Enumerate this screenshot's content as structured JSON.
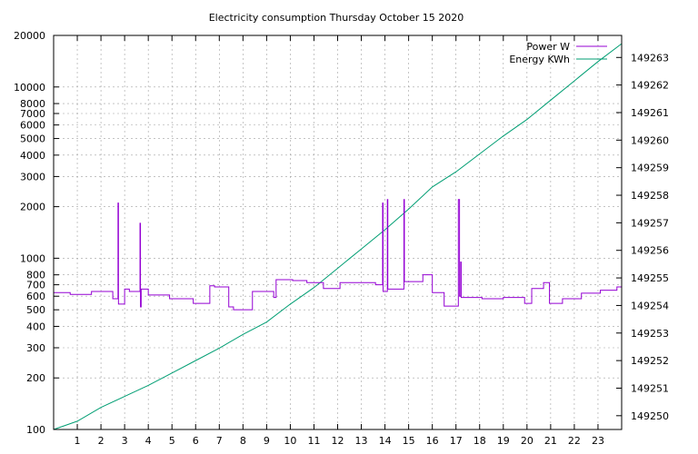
{
  "chart_data": {
    "type": "line",
    "title": "Electricity consumption Thursday October 15 2020",
    "x_range": [
      0,
      24
    ],
    "x_ticks": [
      1,
      2,
      3,
      4,
      5,
      6,
      7,
      8,
      9,
      10,
      11,
      12,
      13,
      14,
      15,
      16,
      17,
      18,
      19,
      20,
      21,
      22,
      23
    ],
    "x_tick_labels": [
      "1",
      "2",
      "3",
      "4",
      "5",
      "6",
      "7",
      "8",
      "9",
      "10",
      "11",
      "12",
      "13",
      "14",
      "15",
      "16",
      "17",
      "18",
      "19",
      "20",
      "21",
      "22",
      "23"
    ],
    "y_left": {
      "scale": "log",
      "range": [
        100,
        20000
      ],
      "ticks": [
        100,
        200,
        300,
        400,
        500,
        600,
        700,
        800,
        1000,
        2000,
        3000,
        4000,
        5000,
        6000,
        7000,
        8000,
        10000,
        20000
      ],
      "tick_labels": [
        "100",
        "200",
        "300",
        "400",
        "500",
        "600",
        "700",
        "800",
        "1000",
        "2000",
        "3000",
        "4000",
        "5000",
        "6000",
        "7000",
        "8000",
        "10000",
        "20000"
      ]
    },
    "y_right": {
      "scale": "linear",
      "range": [
        149249.5,
        149263.8
      ],
      "ticks": [
        149250,
        149251,
        149252,
        149253,
        149254,
        149255,
        149256,
        149257,
        149258,
        149259,
        149260,
        149261,
        149262,
        149263
      ],
      "tick_labels": [
        "149250",
        "149251",
        "149252",
        "149253",
        "149254",
        "149255",
        "149256",
        "149257",
        "149258",
        "149259",
        "149260",
        "149261",
        "149262",
        "149263"
      ]
    },
    "grid": true,
    "legend_position": "top-right",
    "series": [
      {
        "name": "Power W",
        "axis": "left",
        "color": "#9400d3",
        "points": [
          [
            0,
            630
          ],
          [
            0.7,
            630
          ],
          [
            0.7,
            615
          ],
          [
            1.6,
            615
          ],
          [
            1.6,
            640
          ],
          [
            2.5,
            640
          ],
          [
            2.5,
            580
          ],
          [
            2.72,
            580
          ],
          [
            2.72,
            2100
          ],
          [
            2.74,
            2100
          ],
          [
            2.74,
            540
          ],
          [
            3.0,
            540
          ],
          [
            3.0,
            660
          ],
          [
            3.2,
            660
          ],
          [
            3.2,
            640
          ],
          [
            3.65,
            640
          ],
          [
            3.65,
            1600
          ],
          [
            3.67,
            1600
          ],
          [
            3.67,
            520
          ],
          [
            3.7,
            520
          ],
          [
            3.7,
            660
          ],
          [
            4.0,
            660
          ],
          [
            4.0,
            610
          ],
          [
            4.9,
            610
          ],
          [
            4.9,
            580
          ],
          [
            5.9,
            580
          ],
          [
            5.9,
            545
          ],
          [
            6.6,
            545
          ],
          [
            6.6,
            690
          ],
          [
            6.8,
            690
          ],
          [
            6.8,
            680
          ],
          [
            7.4,
            680
          ],
          [
            7.4,
            520
          ],
          [
            7.6,
            520
          ],
          [
            7.6,
            500
          ],
          [
            8.4,
            500
          ],
          [
            8.4,
            640
          ],
          [
            9.3,
            640
          ],
          [
            9.3,
            590
          ],
          [
            9.4,
            590
          ],
          [
            9.4,
            750
          ],
          [
            10.1,
            750
          ],
          [
            10.1,
            740
          ],
          [
            10.7,
            740
          ],
          [
            10.7,
            720
          ],
          [
            11.4,
            720
          ],
          [
            11.4,
            665
          ],
          [
            12.1,
            665
          ],
          [
            12.1,
            720
          ],
          [
            13.6,
            720
          ],
          [
            13.6,
            700
          ],
          [
            13.9,
            700
          ],
          [
            13.9,
            2100
          ],
          [
            13.92,
            2100
          ],
          [
            13.92,
            640
          ],
          [
            14.1,
            640
          ],
          [
            14.1,
            2200
          ],
          [
            14.12,
            2200
          ],
          [
            14.12,
            660
          ],
          [
            14.8,
            660
          ],
          [
            14.8,
            2200
          ],
          [
            14.82,
            2200
          ],
          [
            14.82,
            730
          ],
          [
            15.6,
            730
          ],
          [
            15.6,
            800
          ],
          [
            16.0,
            800
          ],
          [
            16.0,
            630
          ],
          [
            16.5,
            630
          ],
          [
            16.5,
            525
          ],
          [
            17.1,
            525
          ],
          [
            17.1,
            2200
          ],
          [
            17.15,
            2200
          ],
          [
            17.15,
            600
          ],
          [
            17.2,
            600
          ],
          [
            17.2,
            950
          ],
          [
            17.22,
            950
          ],
          [
            17.22,
            590
          ],
          [
            18.1,
            590
          ],
          [
            18.1,
            580
          ],
          [
            19.0,
            580
          ],
          [
            19.0,
            590
          ],
          [
            19.9,
            590
          ],
          [
            19.9,
            545
          ],
          [
            20.2,
            545
          ],
          [
            20.2,
            665
          ],
          [
            20.7,
            665
          ],
          [
            20.7,
            720
          ],
          [
            20.95,
            720
          ],
          [
            20.95,
            545
          ],
          [
            21.5,
            545
          ],
          [
            21.5,
            580
          ],
          [
            22.3,
            580
          ],
          [
            22.3,
            625
          ],
          [
            23.1,
            625
          ],
          [
            23.1,
            650
          ],
          [
            23.8,
            650
          ],
          [
            23.8,
            680
          ],
          [
            24,
            680
          ]
        ]
      },
      {
        "name": "Energy KWh",
        "axis": "right",
        "color": "#009e73",
        "points": [
          [
            0,
            149249.3
          ],
          [
            1,
            149249.8
          ],
          [
            2,
            149250.3
          ],
          [
            3,
            149250.7
          ],
          [
            4,
            149251.1
          ],
          [
            5,
            149251.55
          ],
          [
            6,
            149252.0
          ],
          [
            7,
            149252.45
          ],
          [
            8,
            149252.95
          ],
          [
            9,
            149253.4
          ],
          [
            10,
            149254.05
          ],
          [
            11,
            149254.65
          ],
          [
            12,
            149255.35
          ],
          [
            13,
            149256.05
          ],
          [
            14,
            149256.75
          ],
          [
            15,
            149257.5
          ],
          [
            16,
            149258.3
          ],
          [
            17,
            149258.85
          ],
          [
            18,
            149259.5
          ],
          [
            19,
            149260.15
          ],
          [
            20,
            149260.75
          ],
          [
            21,
            149261.45
          ],
          [
            22,
            149262.15
          ],
          [
            23,
            149262.85
          ],
          [
            24,
            149263.5
          ]
        ]
      }
    ]
  }
}
